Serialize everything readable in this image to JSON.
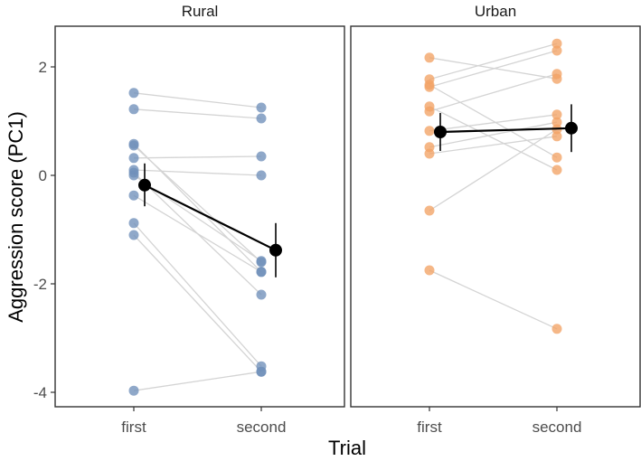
{
  "chart_data": {
    "type": "scatter",
    "xlabel": "Trial",
    "ylabel": "Aggression score (PC1)",
    "categories": [
      "first",
      "second"
    ],
    "ylim": [
      -4.3,
      2.7
    ],
    "yticks": [
      2,
      0,
      -2,
      -4
    ],
    "ytick_labels": [
      "2",
      "0",
      "-2",
      "-4"
    ],
    "grid": false,
    "point_colors": {
      "Rural": "#6f8fba",
      "Urban": "#f2a365"
    },
    "panels": [
      {
        "label": "Rural",
        "pairs": [
          [
            1.52,
            1.25
          ],
          [
            1.22,
            1.05
          ],
          [
            0.58,
            -1.78
          ],
          [
            0.55,
            -1.6
          ],
          [
            0.32,
            0.35
          ],
          [
            0.1,
            0.0
          ],
          [
            0.05,
            -2.2
          ],
          [
            0.0,
            -1.58
          ],
          [
            -0.37,
            -1.78
          ],
          [
            -0.88,
            -3.52
          ],
          [
            -1.1,
            -3.62
          ],
          [
            -3.97,
            -3.62
          ]
        ],
        "mean": [
          -0.18,
          -1.38
        ],
        "err_low": [
          -0.57,
          -1.88
        ],
        "err_high": [
          0.22,
          -0.88
        ]
      },
      {
        "label": "Urban",
        "pairs": [
          [
            2.17,
            1.78
          ],
          [
            1.77,
            2.43
          ],
          [
            1.67,
            0.33
          ],
          [
            1.63,
            2.3
          ],
          [
            1.27,
            0.1
          ],
          [
            1.18,
            1.87
          ],
          [
            0.82,
            1.12
          ],
          [
            0.52,
            0.98
          ],
          [
            0.4,
            0.72
          ],
          [
            -0.65,
            0.85
          ],
          [
            -1.75,
            -2.83
          ]
        ],
        "mean": [
          0.8,
          0.87
        ],
        "err_low": [
          0.45,
          0.43
        ],
        "err_high": [
          1.15,
          1.31
        ]
      }
    ]
  }
}
